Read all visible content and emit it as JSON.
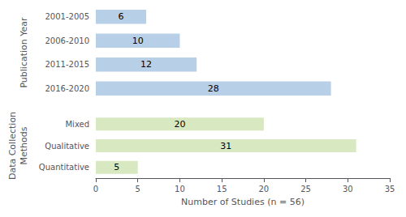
{
  "chart_data": [
    {
      "type": "bar",
      "orientation": "horizontal",
      "categories": [
        "2001-2005",
        "2006-2010",
        "2011-2015",
        "2016-2020"
      ],
      "values": [
        6,
        10,
        12,
        28
      ],
      "color": "#b8cfe8",
      "ylabel": "Publication Year",
      "xlim": [
        0,
        35
      ],
      "grid": false,
      "data_labels": true,
      "tick_labels": "y"
    },
    {
      "type": "bar",
      "orientation": "horizontal",
      "categories": [
        "Mixed",
        "Qualitative",
        "Quantitative"
      ],
      "values": [
        20,
        31,
        5
      ],
      "color": "#d8e8c0",
      "xlabel": "Number of Studies (n = 56)",
      "ylabel": "Data Collection\nMethods",
      "xlim": [
        0,
        35
      ],
      "xticks": [
        0,
        5,
        10,
        15,
        20,
        25,
        30,
        35
      ],
      "grid": false,
      "data_labels": true
    }
  ]
}
